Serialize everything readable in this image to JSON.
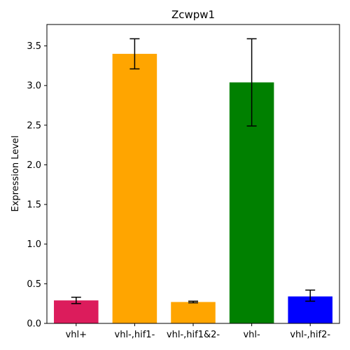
{
  "chart_data": {
    "type": "bar",
    "title": "Zcwpw1",
    "xlabel": "",
    "ylabel": "Expression Level",
    "categories": [
      "vhl+",
      "vhl-,hif1-",
      "vhl-,hif1&2-",
      "vhl-",
      "vhl-,hif2-"
    ],
    "values": [
      0.29,
      3.4,
      0.27,
      3.04,
      0.34
    ],
    "error_low": [
      0.25,
      3.21,
      0.26,
      2.49,
      0.28
    ],
    "error_high": [
      0.33,
      3.59,
      0.28,
      3.59,
      0.42
    ],
    "colors": [
      "#dc1c5c",
      "#ffa500",
      "#ffa500",
      "#008000",
      "#0000ff"
    ],
    "ylim": [
      0,
      3.77
    ],
    "yticks": [
      "0.0",
      "0.5",
      "1.0",
      "1.5",
      "2.0",
      "2.5",
      "3.0",
      "3.5"
    ],
    "grid": false,
    "legend": "none"
  }
}
